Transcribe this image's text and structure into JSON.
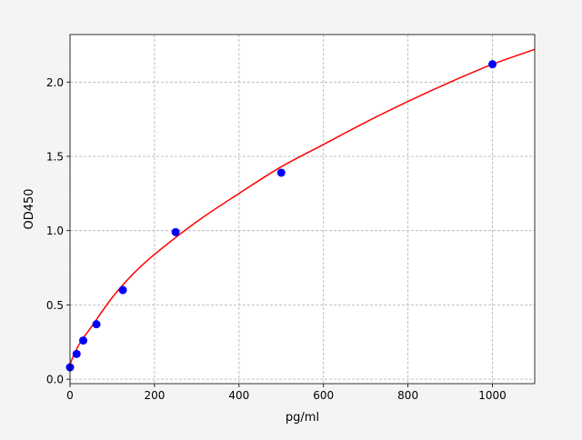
{
  "chart_data": {
    "type": "scatter",
    "title": "",
    "xlabel": "pg/ml",
    "ylabel": "OD450",
    "xlim": [
      0,
      1100
    ],
    "ylim": [
      -0.03,
      2.32
    ],
    "grid": true,
    "x_ticks": [
      0,
      200,
      400,
      600,
      800,
      1000
    ],
    "x_tick_labels": [
      "0",
      "200",
      "400",
      "600",
      "800",
      "1000"
    ],
    "y_ticks": [
      0,
      0.5,
      1.0,
      1.5,
      2.0
    ],
    "y_tick_labels": [
      "0.0",
      "0.5",
      "1.0",
      "1.5",
      "2.0"
    ],
    "points": {
      "color": "#0000ff",
      "x": [
        0,
        15.6,
        31.25,
        62.5,
        125,
        250,
        500,
        1000
      ],
      "y": [
        0.08,
        0.17,
        0.26,
        0.37,
        0.6,
        0.99,
        1.39,
        2.12
      ]
    },
    "fit_curve": {
      "color": "#ff0000",
      "x": [
        0,
        10,
        25,
        50,
        100,
        150,
        200,
        300,
        400,
        500,
        600,
        700,
        800,
        900,
        1000,
        1100
      ],
      "y": [
        0.1,
        0.17,
        0.25,
        0.35,
        0.55,
        0.71,
        0.84,
        1.06,
        1.25,
        1.43,
        1.58,
        1.73,
        1.87,
        2.0,
        2.12,
        2.22
      ]
    }
  }
}
